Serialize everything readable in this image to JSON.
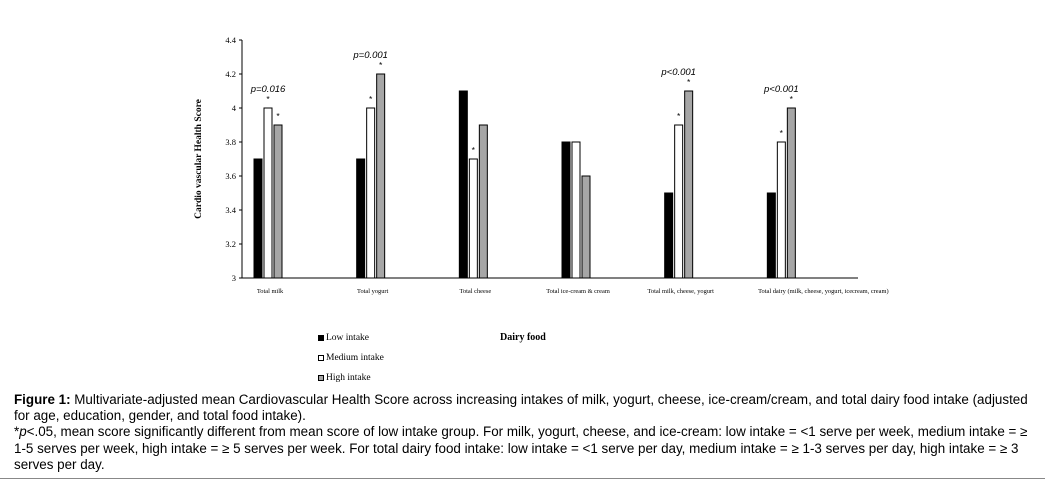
{
  "chart_data": {
    "type": "bar",
    "title": "",
    "xlabel": "Dairy food",
    "ylabel": "Cardio vascular Health Score",
    "ylim": [
      3,
      4.4
    ],
    "yticks": [
      "3",
      "3.2",
      "3.4",
      "3.6",
      "3.8",
      "4",
      "4.2",
      "4.4"
    ],
    "grid": false,
    "legend_position": "bottom-left",
    "categories": [
      "Total milk",
      "Total yogurt",
      "Total cheese",
      "Total ice-cream & cream",
      "Total milk, cheese, yogurt",
      "Total dairy (milk, cheese, yogurt, icecream, cream)"
    ],
    "series": [
      {
        "name": "Low intake",
        "color": "#000000",
        "values": [
          3.7,
          3.7,
          4.1,
          3.8,
          3.5,
          3.5
        ]
      },
      {
        "name": "Medium intake",
        "color": "#ffffff",
        "values": [
          4.0,
          4.0,
          3.7,
          3.8,
          3.9,
          3.8
        ]
      },
      {
        "name": "High intake",
        "color": "#a6a6a6",
        "values": [
          3.9,
          4.2,
          3.9,
          3.6,
          4.1,
          4.0
        ]
      }
    ],
    "significance": [
      [
        "",
        "*",
        "*"
      ],
      [
        "",
        "*",
        "*"
      ],
      [
        "",
        "*",
        ""
      ],
      [
        "",
        "",
        ""
      ],
      [
        "",
        "*",
        "*"
      ],
      [
        "",
        "*",
        "*"
      ]
    ],
    "pvalues": [
      "p=0.016",
      "p=0.001",
      "",
      "",
      "p<0.001",
      "p<0.001"
    ]
  },
  "legend_items": [
    "Low intake",
    "Medium intake",
    "High intake"
  ],
  "caption": {
    "figure_label": "Figure 1:",
    "text": " Multivariate-adjusted mean Cardiovascular Health Score across increasing intakes of milk, yogurt, cheese, ice-cream/cream, and total dairy food intake (adjusted for age, education, gender, and total food intake).",
    "note_prefix": "*",
    "note_p": "p",
    "note_text": "<.05, mean score significantly different from mean score of low intake group. For milk, yogurt, cheese, and ice-cream: low intake = <1 serve per week, medium intake = ≥ 1-5 serves per week, high intake = ≥ 5 serves per week. For total dairy food intake: low intake = <1 serve per day, medium intake = ≥ 1-3 serves per day, high intake = ≥ 3 serves per day."
  }
}
